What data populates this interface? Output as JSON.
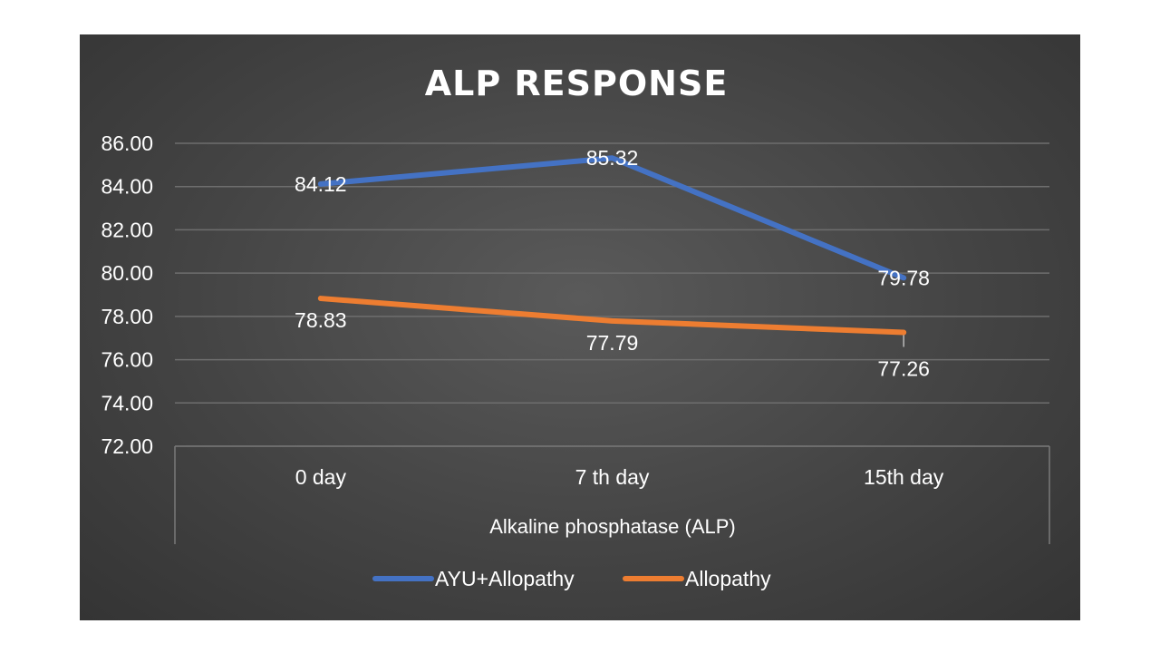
{
  "chart_data": {
    "type": "line",
    "title": "ALP RESPONSE",
    "xlabel": "Alkaline phosphatase (ALP)",
    "ylabel": "",
    "categories": [
      "0 day",
      "7 th day",
      "15th day"
    ],
    "yticks": [
      "72.00",
      "74.00",
      "76.00",
      "78.00",
      "80.00",
      "82.00",
      "84.00",
      "86.00"
    ],
    "ylim": [
      72,
      86
    ],
    "grid": true,
    "legend_position": "bottom",
    "series": [
      {
        "name": "AYU+Allopathy",
        "color": "#4472C4",
        "values": [
          84.12,
          85.32,
          79.78
        ],
        "labels": [
          "84.12",
          "85.32",
          "79.78"
        ]
      },
      {
        "name": "Allopathy",
        "color": "#ED7D31",
        "values": [
          78.83,
          77.79,
          77.26
        ],
        "labels": [
          "78.83",
          "77.79",
          "77.26"
        ]
      }
    ]
  }
}
